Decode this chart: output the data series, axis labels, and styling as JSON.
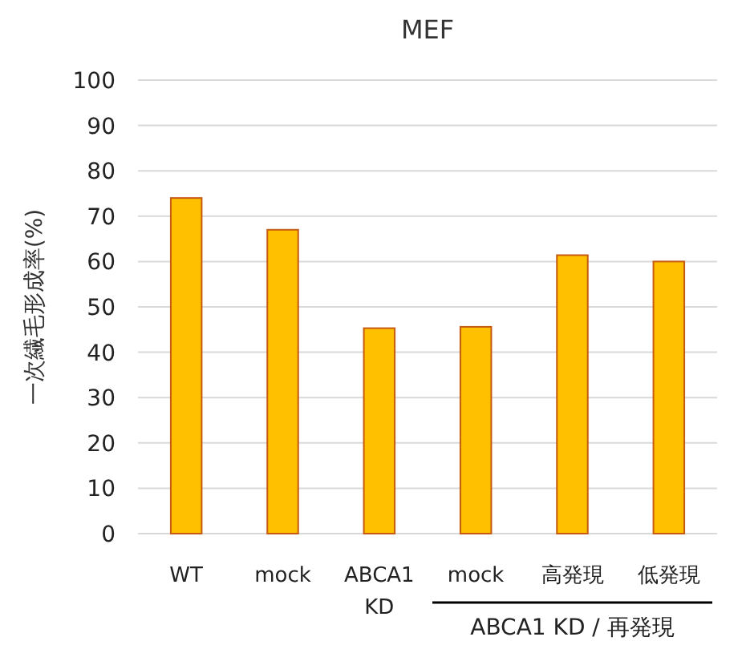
{
  "chart_data": {
    "type": "bar",
    "title": "MEF",
    "ylabel": "一次繊毛形成率(%)",
    "categories": [
      "WT",
      "mock",
      "ABCA1 KD",
      "mock",
      "高発現",
      "低発現"
    ],
    "values": [
      74,
      67,
      45.3,
      45.6,
      61.4,
      60
    ],
    "color": "#ffc000",
    "ylim": [
      0,
      100
    ],
    "yticks": [
      0,
      10,
      20,
      30,
      40,
      50,
      60,
      70,
      80,
      90,
      100
    ],
    "grid": "y",
    "annotations": [
      "ABCA1 KD / 再発現"
    ]
  }
}
